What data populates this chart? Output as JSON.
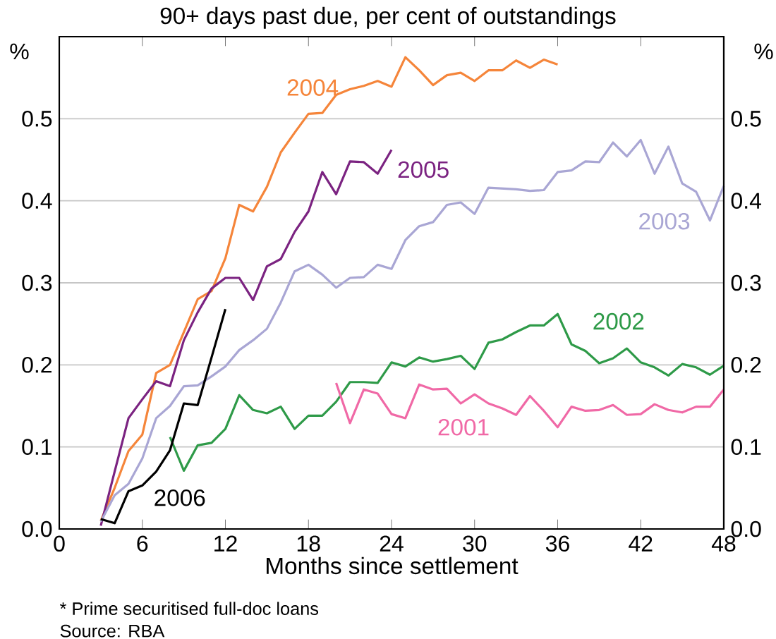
{
  "chart_data": {
    "type": "line",
    "subtitle": "90+ days past due, per cent of outstandings",
    "xlabel": "Months since settlement",
    "ylabel": "%",
    "y2label": "%",
    "annotations": [
      "* Prime securitised full-doc loans",
      "Source: RBA"
    ],
    "xlim": [
      0,
      48
    ],
    "xticks": [
      0,
      6,
      12,
      18,
      24,
      30,
      36,
      42,
      48
    ],
    "ylim": [
      0,
      0.6
    ],
    "yticks": [
      {
        "value": 0,
        "label": "0.0"
      },
      {
        "value": 0.1,
        "label": "0.1"
      },
      {
        "value": 0.2,
        "label": "0.2"
      },
      {
        "value": 0.3,
        "label": "0.3"
      },
      {
        "value": 0.4,
        "label": "0.4"
      },
      {
        "value": 0.5,
        "label": "0.5"
      }
    ],
    "y2lim": [
      0,
      0.6
    ],
    "y2ticks": [
      {
        "value": 0,
        "label": "0.0"
      },
      {
        "value": 0.1,
        "label": "0.1"
      },
      {
        "value": 0.2,
        "label": "0.2"
      },
      {
        "value": 0.3,
        "label": "0.3"
      },
      {
        "value": 0.4,
        "label": "0.4"
      },
      {
        "value": 0.5,
        "label": "0.5"
      }
    ],
    "grid": "y",
    "marker": "none",
    "series": [
      {
        "name": "2004",
        "color": "#f5853a",
        "x": [
          3,
          4,
          5,
          6,
          7,
          8,
          9,
          10,
          11,
          12,
          13,
          14,
          15,
          16,
          17,
          18,
          19,
          20,
          21,
          22,
          23,
          24,
          25,
          26,
          27,
          28,
          29,
          30,
          31,
          32,
          33,
          34,
          35,
          36
        ],
        "values": [
          0.01,
          0.05,
          0.095,
          0.115,
          0.19,
          0.2,
          0.24,
          0.28,
          0.29,
          0.33,
          0.395,
          0.387,
          0.417,
          0.459,
          0.483,
          0.506,
          0.507,
          0.529,
          0.536,
          0.54,
          0.546,
          0.539,
          0.575,
          0.559,
          0.541,
          0.553,
          0.556,
          0.546,
          0.559,
          0.559,
          0.571,
          0.562,
          0.572,
          0.566
        ]
      },
      {
        "name": "2005",
        "color": "#7b2381",
        "x": [
          3,
          4,
          5,
          6,
          7,
          8,
          9,
          10,
          11,
          12,
          13,
          14,
          15,
          16,
          17,
          18,
          19,
          20,
          21,
          22,
          23,
          24
        ],
        "values": [
          0.004,
          0.07,
          0.135,
          0.158,
          0.18,
          0.174,
          0.23,
          0.264,
          0.293,
          0.306,
          0.306,
          0.279,
          0.32,
          0.329,
          0.362,
          0.387,
          0.435,
          0.408,
          0.448,
          0.447,
          0.433,
          0.462
        ]
      },
      {
        "name": "2003",
        "color": "#a9a6d4",
        "x": [
          3,
          4,
          5,
          6,
          7,
          8,
          9,
          10,
          11,
          12,
          13,
          14,
          15,
          16,
          17,
          18,
          19,
          20,
          21,
          22,
          23,
          24,
          25,
          26,
          27,
          28,
          29,
          30,
          31,
          32,
          33,
          34,
          35,
          36,
          37,
          38,
          39,
          40,
          41,
          42,
          43,
          44,
          45,
          46,
          47,
          48
        ],
        "values": [
          0.009,
          0.041,
          0.055,
          0.086,
          0.135,
          0.15,
          0.174,
          0.175,
          0.186,
          0.198,
          0.218,
          0.23,
          0.244,
          0.276,
          0.314,
          0.322,
          0.31,
          0.294,
          0.306,
          0.307,
          0.322,
          0.317,
          0.352,
          0.369,
          0.374,
          0.395,
          0.398,
          0.384,
          0.416,
          0.415,
          0.414,
          0.412,
          0.413,
          0.435,
          0.437,
          0.448,
          0.447,
          0.471,
          0.454,
          0.474,
          0.433,
          0.466,
          0.421,
          0.411,
          0.376,
          0.418
        ]
      },
      {
        "name": "2002",
        "color": "#2e9a48",
        "x": [
          8,
          9,
          10,
          11,
          12,
          13,
          14,
          15,
          16,
          17,
          18,
          19,
          20,
          21,
          22,
          23,
          24,
          25,
          26,
          27,
          28,
          29,
          30,
          31,
          32,
          33,
          34,
          35,
          36,
          37,
          38,
          39,
          40,
          41,
          42,
          43,
          44,
          45,
          46,
          47,
          48
        ],
        "values": [
          0.112,
          0.071,
          0.102,
          0.105,
          0.122,
          0.163,
          0.145,
          0.141,
          0.149,
          0.122,
          0.138,
          0.138,
          0.155,
          0.179,
          0.179,
          0.178,
          0.203,
          0.198,
          0.209,
          0.204,
          0.207,
          0.211,
          0.195,
          0.227,
          0.231,
          0.24,
          0.248,
          0.248,
          0.262,
          0.225,
          0.217,
          0.202,
          0.208,
          0.22,
          0.203,
          0.197,
          0.187,
          0.201,
          0.197,
          0.188,
          0.199
        ]
      },
      {
        "name": "2001",
        "color": "#f069a6",
        "x": [
          20,
          21,
          22,
          23,
          24,
          25,
          26,
          27,
          28,
          29,
          30,
          31,
          32,
          33,
          34,
          35,
          36,
          37,
          38,
          39,
          40,
          41,
          42,
          43,
          44,
          45,
          46,
          47,
          48
        ],
        "values": [
          0.178,
          0.129,
          0.17,
          0.165,
          0.14,
          0.135,
          0.176,
          0.17,
          0.171,
          0.153,
          0.164,
          0.153,
          0.147,
          0.139,
          0.162,
          0.144,
          0.124,
          0.149,
          0.144,
          0.145,
          0.151,
          0.139,
          0.14,
          0.152,
          0.145,
          0.142,
          0.149,
          0.149,
          0.17
        ]
      },
      {
        "name": "2006",
        "color": "#000000",
        "x": [
          3,
          4,
          5,
          6,
          7,
          8,
          9,
          10,
          11,
          12
        ],
        "values": [
          0.012,
          0.007,
          0.046,
          0.053,
          0.07,
          0.096,
          0.153,
          0.151,
          0.209,
          0.268
        ]
      }
    ]
  }
}
